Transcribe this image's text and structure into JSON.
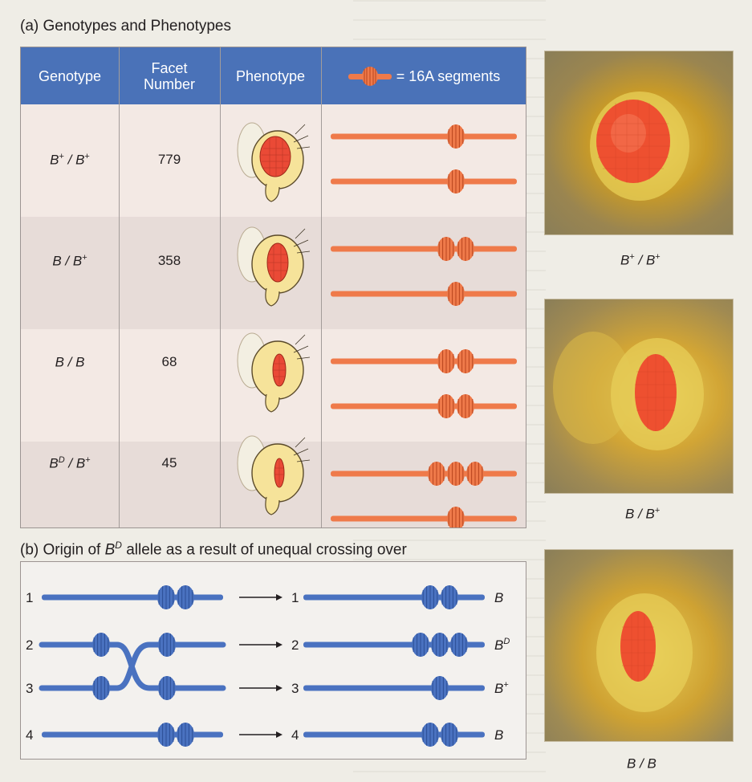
{
  "part_a": {
    "title": "(a) Genotypes and Phenotypes",
    "headers": {
      "genotype": "Genotype",
      "facet_line1": "Facet",
      "facet_line2": "Number",
      "phenotype": "Phenotype",
      "legend": "= 16A segments"
    },
    "rows": [
      {
        "g1": "B",
        "s1": "+",
        "sep": " / ",
        "g2": "B",
        "s2": "+",
        "facet": "779",
        "segments": [
          1,
          1
        ]
      },
      {
        "g1": "B",
        "s1": "",
        "sep": " / ",
        "g2": "B",
        "s2": "+",
        "facet": "358",
        "segments": [
          2,
          1
        ]
      },
      {
        "g1": "B",
        "s1": "",
        "sep": " / ",
        "g2": "B",
        "s2": "",
        "facet": "68",
        "segments": [
          2,
          2
        ]
      },
      {
        "g1": "B",
        "s1": "D",
        "sep": " / ",
        "g2": "B",
        "s2": "+",
        "facet": "45",
        "segments": [
          3,
          1
        ]
      }
    ]
  },
  "part_b": {
    "title_pre": "(b) Origin of ",
    "title_b": "B",
    "title_sup": "D",
    "title_post": " allele as a result of unequal crossing over",
    "left_numbers": [
      "1",
      "2",
      "3",
      "4"
    ],
    "right_numbers": [
      "1",
      "2",
      "3",
      "4"
    ],
    "right_labels": [
      {
        "base": "B",
        "sup": ""
      },
      {
        "base": "B",
        "sup": "D"
      },
      {
        "base": "B",
        "sup": "+"
      },
      {
        "base": "B",
        "sup": ""
      }
    ]
  },
  "photos": [
    {
      "base1": "B",
      "sup1": "+",
      "sep": " / ",
      "base2": "B",
      "sup2": "+"
    },
    {
      "base1": "B",
      "sup1": "",
      "sep": " / ",
      "base2": "B",
      "sup2": "+"
    },
    {
      "base1": "B",
      "sup1": "",
      "sep": " / ",
      "base2": "B",
      "sup2": ""
    }
  ],
  "colors": {
    "header_blue": "#4a72b8",
    "segment_orange": "#ef7a4a",
    "chromosome_blue": "#4a72c0",
    "eye_red": "#e8452a"
  }
}
